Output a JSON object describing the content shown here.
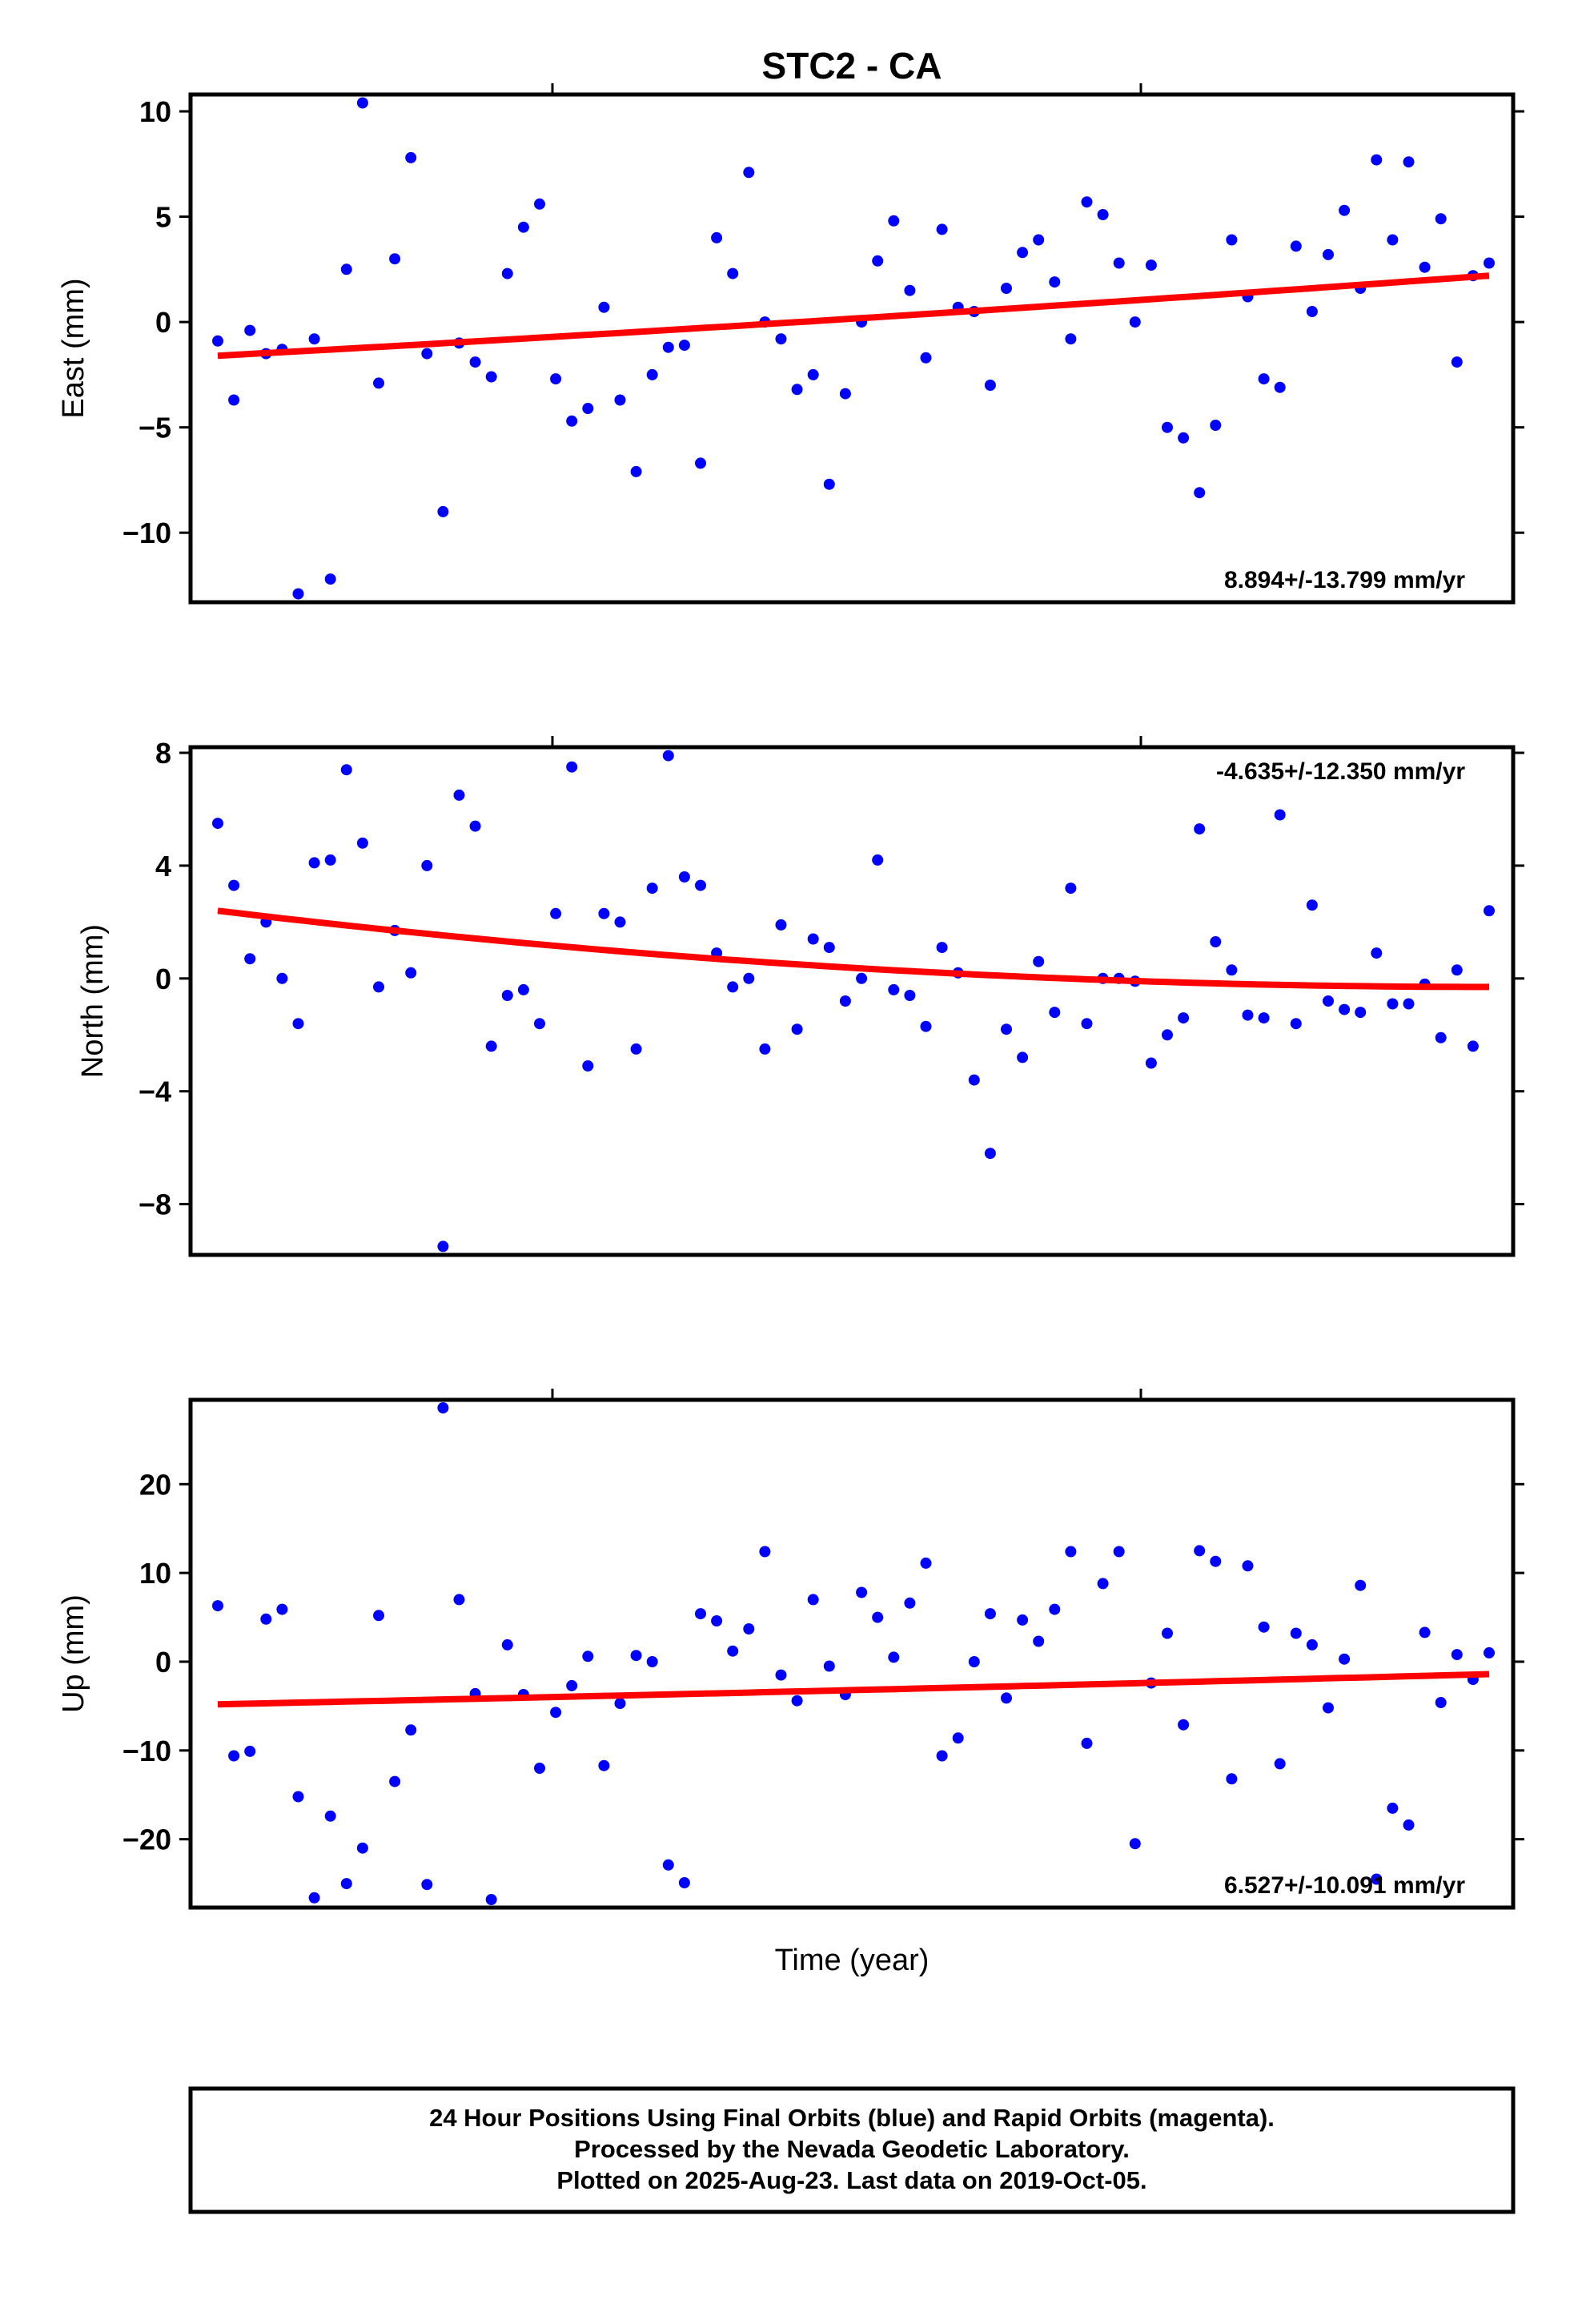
{
  "title": "STC2 - CA",
  "xlabel": "Time (year)",
  "footer": [
    "24 Hour Positions Using Final Orbits (blue) and Rapid Orbits (magenta).",
    "Processed by the Nevada Geodetic Laboratory.",
    "Plotted on 2025-Aug-23. Last data on 2019-Oct-05."
  ],
  "colors": {
    "final_orbits": "#0000ff",
    "rapid_orbits": "#ff00ff",
    "trend": "#ff0000",
    "frame": "#000000"
  },
  "chart_data": [
    {
      "type": "scatter",
      "ylabel": "East (mm)",
      "rate_label": "8.894+/-13.799 mm/yr",
      "rate_position": "bottom-right",
      "ylim": [
        -13.3,
        10.8
      ],
      "yticks": [
        10,
        5,
        0,
        -5,
        -10
      ],
      "ytick_labels": [
        "10",
        "5",
        "0",
        "−5",
        "−10"
      ],
      "x": [
        0,
        1,
        2,
        3,
        4,
        5,
        6,
        7,
        8,
        9,
        10,
        11,
        12,
        13,
        14,
        15,
        16,
        17,
        18,
        19,
        20,
        21,
        22,
        23,
        24,
        25,
        26,
        27,
        28,
        29,
        30,
        31,
        32,
        33,
        34,
        35,
        36,
        37,
        38,
        39,
        40,
        41,
        42,
        43,
        44,
        45,
        46,
        47,
        48,
        49,
        50,
        51,
        52,
        53,
        54,
        55,
        56,
        57,
        58,
        59,
        60,
        61,
        62,
        63,
        64,
        65,
        66,
        67,
        68,
        69,
        70,
        71,
        72,
        73,
        74,
        75,
        76,
        77,
        78,
        79
      ],
      "y": [
        -0.9,
        -3.7,
        -0.4,
        -1.5,
        -1.3,
        -12.9,
        -0.8,
        -12.2,
        2.5,
        10.4,
        -2.9,
        3.0,
        7.8,
        -1.5,
        -9.0,
        -1.0,
        -1.9,
        -2.6,
        2.3,
        4.5,
        5.6,
        -2.7,
        -4.7,
        -4.1,
        0.7,
        -3.7,
        -7.1,
        -2.5,
        -1.2,
        -1.1,
        -6.7,
        4.0,
        2.3,
        7.1,
        0.0,
        -0.8,
        -3.2,
        -2.5,
        -7.7,
        -3.4,
        0.0,
        2.9,
        4.8,
        1.5,
        -1.7,
        4.4,
        0.7,
        0.5,
        -3.0,
        1.6,
        3.3,
        3.9,
        1.9,
        -0.8,
        5.7,
        5.1,
        2.8,
        0.0,
        2.7,
        -5.0,
        -5.5,
        -8.1,
        -4.9,
        3.9,
        1.2,
        -2.7,
        -3.1,
        3.6,
        0.5,
        3.2,
        5.3,
        1.6,
        7.7,
        3.9,
        7.6,
        2.6,
        4.9,
        -1.9,
        2.2,
        2.8
      ],
      "trend": {
        "x": [
          0,
          79
        ],
        "y": [
          -1.6,
          2.2
        ],
        "shape": "slightly concave upward"
      }
    },
    {
      "type": "scatter",
      "ylabel": "North (mm)",
      "rate_label": "-4.635+/-12.350 mm/yr",
      "rate_position": "top-right",
      "ylim": [
        -9.8,
        8.2
      ],
      "yticks": [
        8,
        4,
        0,
        -4,
        -8
      ],
      "ytick_labels": [
        "8",
        "4",
        "0",
        "−4",
        "−8"
      ],
      "x": [
        0,
        1,
        2,
        3,
        4,
        5,
        6,
        7,
        8,
        9,
        10,
        11,
        12,
        13,
        14,
        15,
        16,
        17,
        18,
        19,
        20,
        21,
        22,
        23,
        24,
        25,
        26,
        27,
        28,
        29,
        30,
        31,
        32,
        33,
        34,
        35,
        36,
        37,
        38,
        39,
        40,
        41,
        42,
        43,
        44,
        45,
        46,
        47,
        48,
        49,
        50,
        51,
        52,
        53,
        54,
        55,
        56,
        57,
        58,
        59,
        60,
        61,
        62,
        63,
        64,
        65,
        66,
        67,
        68,
        69,
        70,
        71,
        72,
        73,
        74,
        75,
        76,
        77,
        78,
        79
      ],
      "y": [
        5.5,
        3.3,
        0.7,
        2.0,
        0.0,
        -1.6,
        4.1,
        4.2,
        7.4,
        4.8,
        -0.3,
        1.7,
        0.2,
        4.0,
        -9.5,
        6.5,
        5.4,
        -2.4,
        -0.6,
        -0.4,
        -1.6,
        2.3,
        7.5,
        -3.1,
        2.3,
        2.0,
        -2.5,
        3.2,
        7.9,
        3.6,
        3.3,
        0.9,
        -0.3,
        0.0,
        -2.5,
        1.9,
        -1.8,
        1.4,
        1.1,
        -0.8,
        0.0,
        4.2,
        -0.4,
        -0.6,
        -1.7,
        1.1,
        0.2,
        -3.6,
        -6.2,
        -1.8,
        -2.8,
        0.6,
        -1.2,
        3.2,
        -1.6,
        0.0,
        0.0,
        -0.1,
        -3.0,
        -2.0,
        -1.4,
        5.3,
        1.3,
        0.3,
        -1.3,
        -1.4,
        5.8,
        -1.6,
        2.6,
        -0.8,
        -1.1,
        -1.2,
        0.9,
        -0.9,
        -0.9,
        -0.2,
        -2.1,
        0.3,
        -2.4,
        2.4
      ],
      "trend": {
        "x": [
          0,
          79
        ],
        "y": [
          2.4,
          -0.3
        ],
        "shape": "decreasing then flattening"
      }
    },
    {
      "type": "scatter",
      "ylabel": "Up (mm)",
      "rate_label": "6.527+/-10.091 mm/yr",
      "rate_position": "bottom-right",
      "ylim": [
        -27.7,
        29.5
      ],
      "yticks": [
        20,
        10,
        0,
        -10,
        -20
      ],
      "ytick_labels": [
        "20",
        "10",
        "0",
        "−10",
        "−20"
      ],
      "x": [
        0,
        1,
        2,
        3,
        4,
        5,
        6,
        7,
        8,
        9,
        10,
        11,
        12,
        13,
        14,
        15,
        16,
        17,
        18,
        19,
        20,
        21,
        22,
        23,
        24,
        25,
        26,
        27,
        28,
        29,
        30,
        31,
        32,
        33,
        34,
        35,
        36,
        37,
        38,
        39,
        40,
        41,
        42,
        43,
        44,
        45,
        46,
        47,
        48,
        49,
        50,
        51,
        52,
        53,
        54,
        55,
        56,
        57,
        58,
        59,
        60,
        61,
        62,
        63,
        64,
        65,
        66,
        67,
        68,
        69,
        70,
        71,
        72,
        73,
        74,
        75,
        76,
        77,
        78,
        79
      ],
      "y": [
        6.3,
        -10.6,
        -10.1,
        4.8,
        5.9,
        -15.2,
        -26.6,
        -17.4,
        -25.0,
        -21.0,
        5.2,
        -13.5,
        -7.7,
        -25.1,
        28.6,
        7.0,
        -3.6,
        -26.8,
        1.9,
        -3.7,
        -12.0,
        -5.7,
        -2.7,
        0.6,
        -11.7,
        -4.7,
        0.7,
        0.0,
        -22.9,
        -24.9,
        5.4,
        4.6,
        1.2,
        3.7,
        12.4,
        -1.5,
        -4.4,
        7.0,
        -0.5,
        -3.7,
        7.8,
        5.0,
        0.5,
        6.6,
        11.1,
        -10.6,
        -8.6,
        0.0,
        5.4,
        -4.1,
        4.7,
        2.3,
        5.9,
        12.4,
        -9.2,
        8.8,
        12.4,
        -20.5,
        -2.4,
        3.2,
        -7.1,
        12.5,
        11.3,
        -13.2,
        10.8,
        3.9,
        -11.5,
        3.2,
        1.9,
        -5.2,
        0.3,
        8.6,
        -24.5,
        -16.5,
        -18.4,
        3.3,
        -4.6,
        0.8,
        -2.0,
        1.0
      ],
      "trend": {
        "x": [
          0,
          79
        ],
        "y": [
          -4.8,
          -1.4
        ],
        "shape": "slightly concave downward"
      }
    }
  ]
}
